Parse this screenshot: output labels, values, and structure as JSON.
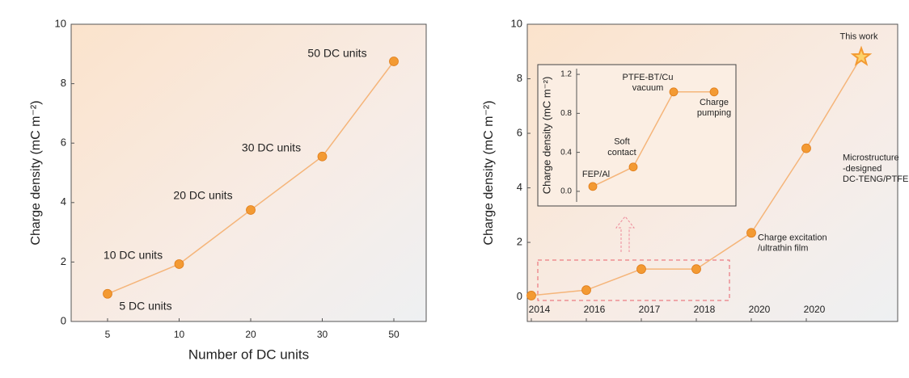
{
  "chart_data": [
    {
      "type": "line",
      "categories": [
        "5",
        "10",
        "20",
        "30",
        "50"
      ],
      "values": [
        0.93,
        1.93,
        3.75,
        5.55,
        8.75
      ],
      "point_labels": [
        "5 DC units",
        "10 DC units",
        "20 DC units",
        "30 DC units",
        "50 DC units"
      ],
      "x_label": "Number of DC units",
      "y_label": "Charge density (mC m⁻²)",
      "ylim": [
        0,
        10
      ],
      "yticks": [
        0,
        2,
        4,
        6,
        8,
        10
      ],
      "color": "#f39a33"
    },
    {
      "type": "line",
      "categories": [
        "2014",
        "2016",
        "2017",
        "2018",
        "2020",
        "2020",
        null
      ],
      "values": [
        0.05,
        0.25,
        1.02,
        1.02,
        2.35,
        5.45,
        8.8
      ],
      "point_labels": [
        null,
        null,
        null,
        null,
        "Charge excitation\n/ultrathin film",
        "Microstructure\n-designed\nDC-TENG/PTFE",
        "This work"
      ],
      "y_label": "Charge density (mC m⁻²)",
      "ylim": [
        -0.9,
        10
      ],
      "yticks": [
        0,
        2,
        4,
        6,
        8,
        10
      ],
      "color": "#f39a33"
    },
    {
      "type": "line",
      "values": [
        0.05,
        0.25,
        1.02,
        1.02
      ],
      "point_labels": [
        "FEP/Al",
        "Soft\ncontact",
        "PTFE-BT/Cu\nvacuum",
        "Charge\npumping"
      ],
      "y_label": "Charge density (mC m⁻²)",
      "ylim": [
        -0.15,
        1.3
      ],
      "yticks": [
        {
          "value": 0,
          "label": "0.0"
        },
        0.4,
        0.8,
        1.2
      ],
      "color": "#f39a33"
    }
  ]
}
